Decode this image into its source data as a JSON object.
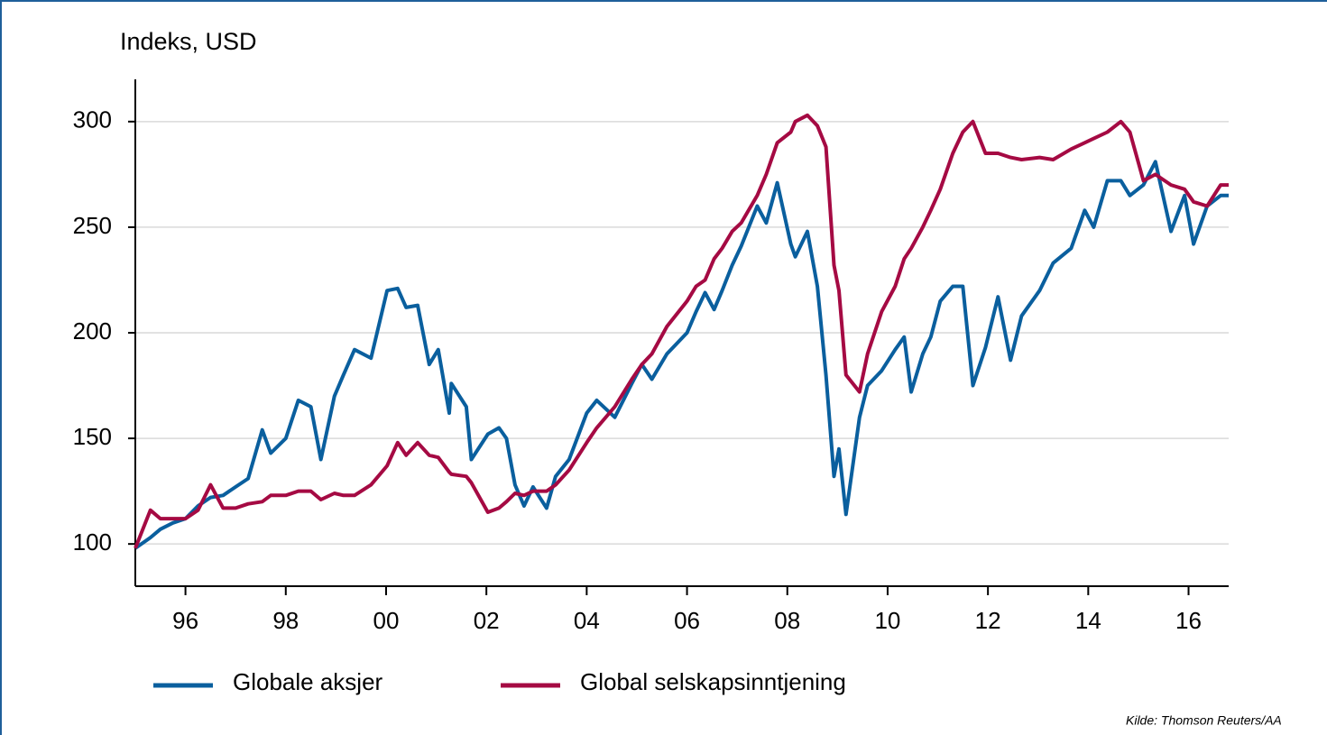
{
  "chart_data": {
    "type": "line",
    "y_label": "Indeks, USD",
    "source": "Kilde: Thomson Reuters/AA",
    "x": [
      1995.0,
      1995.3,
      1995.5,
      1995.75,
      1996.0,
      1996.25,
      1996.5,
      1996.75,
      1997.0,
      1997.25,
      1997.53,
      1997.7,
      1998.0,
      1998.25,
      1998.5,
      1998.7,
      1998.97,
      1999.15,
      1999.37,
      1999.7,
      2000.02,
      2000.23,
      2000.4,
      2000.63,
      2000.86,
      2001.04,
      2001.26,
      2001.3,
      2001.6,
      2001.7,
      2002.03,
      2002.25,
      2002.4,
      2002.57,
      2002.75,
      2002.93,
      2003.2,
      2003.38,
      2003.65,
      2004.0,
      2004.2,
      2004.56,
      2004.9,
      2005.1,
      2005.3,
      2005.6,
      2006.0,
      2006.18,
      2006.36,
      2006.54,
      2006.7,
      2006.9,
      2007.08,
      2007.4,
      2007.58,
      2007.8,
      2008.07,
      2008.16,
      2008.4,
      2008.6,
      2008.77,
      2008.93,
      2009.03,
      2009.17,
      2009.44,
      2009.6,
      2009.88,
      2010.15,
      2010.33,
      2010.47,
      2010.7,
      2010.86,
      2011.05,
      2011.3,
      2011.5,
      2011.7,
      2011.95,
      2012.2,
      2012.45,
      2012.67,
      2013.03,
      2013.3,
      2013.66,
      2013.93,
      2014.11,
      2014.38,
      2014.65,
      2014.83,
      2015.1,
      2015.34,
      2015.65,
      2015.92,
      2016.1,
      2016.37,
      2016.64,
      2016.8
    ],
    "series": [
      {
        "name": "Globale aksjer",
        "color": "#0a5f9e",
        "values": [
          98,
          103,
          107,
          110,
          112,
          118,
          122,
          123,
          127,
          131,
          154,
          143,
          150,
          168,
          165,
          140,
          170,
          180,
          192,
          188,
          220,
          221,
          212,
          213,
          185,
          192,
          162,
          176,
          165,
          140,
          152,
          155,
          150,
          128,
          118,
          127,
          117,
          132,
          140,
          162,
          168,
          160,
          176,
          185,
          178,
          190,
          200,
          210,
          219,
          211,
          220,
          232,
          241,
          260,
          252,
          271,
          242,
          236,
          248,
          222,
          180,
          132,
          145,
          114,
          160,
          175,
          182,
          192,
          198,
          172,
          190,
          198,
          215,
          222,
          222,
          175,
          193,
          217,
          187,
          208,
          220,
          233,
          240,
          258,
          250,
          272,
          272,
          265,
          270,
          281,
          248,
          265,
          242,
          260,
          265,
          265
        ]
      },
      {
        "name": "Global selskapsinntjening",
        "color": "#a50a43",
        "values": [
          98,
          116,
          112,
          112,
          112,
          116,
          128,
          117,
          117,
          119,
          120,
          123,
          123,
          125,
          125,
          121,
          124,
          123,
          123,
          128,
          137,
          148,
          142,
          148,
          142,
          141,
          134,
          133,
          132,
          129,
          115,
          117,
          120,
          124,
          123,
          125,
          125,
          128,
          135,
          148,
          155,
          165,
          178,
          185,
          190,
          203,
          215,
          222,
          225,
          235,
          240,
          248,
          252,
          265,
          275,
          290,
          295,
          300,
          303,
          298,
          288,
          232,
          220,
          180,
          172,
          190,
          210,
          222,
          235,
          240,
          250,
          258,
          268,
          285,
          295,
          300,
          285,
          285,
          283,
          282,
          283,
          282,
          287,
          290,
          292,
          295,
          300,
          295,
          272,
          275,
          270,
          268,
          262,
          260,
          270,
          270
        ]
      }
    ],
    "xlim": [
      1995,
      2016.8
    ],
    "xticks": [
      {
        "value": 1996,
        "label": "96"
      },
      {
        "value": 1998,
        "label": "98"
      },
      {
        "value": 2000,
        "label": "00"
      },
      {
        "value": 2002,
        "label": "02"
      },
      {
        "value": 2004,
        "label": "04"
      },
      {
        "value": 2006,
        "label": "06"
      },
      {
        "value": 2008,
        "label": "08"
      },
      {
        "value": 2010,
        "label": "10"
      },
      {
        "value": 2012,
        "label": "12"
      },
      {
        "value": 2014,
        "label": "14"
      },
      {
        "value": 2016,
        "label": "16"
      }
    ],
    "ylim": [
      80,
      320
    ],
    "yticks": [
      100,
      150,
      200,
      250,
      300
    ],
    "grid": true,
    "legend": "bottom"
  }
}
